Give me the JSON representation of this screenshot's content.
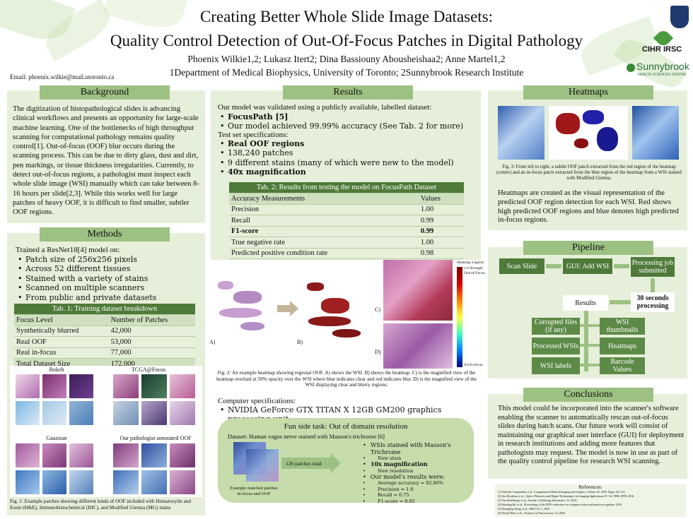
{
  "header": {
    "title_line1": "Creating Better Whole Slide Image Datasets:",
    "title_line2": "Quality Control Detection of Out-Of-Focus Patches in Digital Pathology",
    "authors": "Phoenix Wilkie1,2; Lukasz Itert2; Dina Bassiouny Abousheishaa2; Anne Martel1,2",
    "affiliations": "1Department of Medical Biophysics, University of Toronto; 2Sunnybrook Research Institute",
    "email": "Email: phoenix.wilkie@mail.utoronto.ca",
    "logo_cihr": "CIHR IRSC",
    "logo_sunnybrook": "Sunnybrook",
    "logo_sunnybrook_sub": "HEALTH SCIENCES CENTRE"
  },
  "background": {
    "title": "Background",
    "text": "The digitization of histopathological slides is advancing clinical workflows and presents an opportunity for large-scale machine learning. One of the bottlenecks of high throughput scanning for computational pathology remains quality control[1]. Out-of-focus (OOF) blur occurs during the scanning process. This can be due to dirty glass, dust and dirt, pen markings, or tissue thickness irregularities. Currently, to detect out-of-focus regions, a pathologist must inspect each whole slide image (WSI) manually which can take between 8-16 hours per slide[2,3]. While this works well for large patches of heavy OOF, it is difficult to find smaller, subtler OOF regions."
  },
  "methods": {
    "title": "Methods",
    "intro": "Trained a ResNet18[4] model on:",
    "bullets": [
      "Patch size of 256x256 pixels",
      "Across 52 different tissues",
      "Stained with a variety of stains",
      "Scanned on multiple scanners",
      "From public and private datasets"
    ],
    "table": {
      "caption": "Tab. 1: Training dataset breakdown",
      "headers": [
        "Focus Level",
        "Number of Patches"
      ],
      "rows": [
        [
          "Synthetically blurred",
          "42,000"
        ],
        [
          "Real OOF",
          "53,000"
        ],
        [
          "Real in-focus",
          "77,000"
        ],
        [
          "Total Dataset Size",
          "172,000"
        ]
      ]
    },
    "image_labels": [
      "Bokeh",
      "TCGA@Focus",
      "Gaussian",
      "Our pathologist annotated OOF"
    ],
    "fig_caption": "Fig. 1: Example patches showing different kinds of OOF included with Hematoxylin and Eosin (H&E), Immunohistochemical (IHC), and Modified Giemsa (MG) stains"
  },
  "results": {
    "title": "Results",
    "intro": "Our model was validated using a publicly available, labelled dataset:",
    "bullets1": [
      "FocusPath [5]",
      "Our model achieved 99.99% accuracy (See Tab. 2 for more)"
    ],
    "spec_title": "Test set specifications:",
    "bullets2": [
      "Real OOF regions",
      "138,240 patches",
      "9 different stains (many of which were new to the model)",
      "40x magnification"
    ],
    "table": {
      "caption": "Tab. 2: Results from testing the model on FocusPath Dataset",
      "headers": [
        "Accuracy Measurements",
        "Values"
      ],
      "rows": [
        [
          "Precision",
          "1.00"
        ],
        [
          "Recall",
          "0.99"
        ],
        [
          "F1-score",
          "0.99"
        ],
        [
          "True negative rate",
          "1.00"
        ],
        [
          "Predicted positive condition rate",
          "0.98"
        ]
      ]
    },
    "fig_labels": [
      "A)",
      "B)",
      "C)",
      "D)"
    ],
    "legend_title": "Heatmap Legend",
    "legend_top": "1.0 Strongly Out-of-Focus",
    "legend_bottom": "0.0 In-focus",
    "fig_caption": "Fig. 2: An example heatmap showing regional OOF. A) shows the WSI. B) shows the heatmap. C) is the magnified view of the heatmap overlaid at 50% opacity over the WSI where blue indicates clear and red indicates blur. D) is the magnified view of the WSI displaying clear and blurry regions.",
    "computer_title": "Computer specifications:",
    "computer_bullet": "NVIDIA GeForce GTX TITAN X 12GB GM200 graphics processing unit",
    "side_task": {
      "title": "Fun side task: Out of domain resolution",
      "dataset": "Dataset: Human vagus nerve stained with Masson's trichrome [6]",
      "patches": "126 patches total",
      "img_caption": "Example matched patches In-focus and OOF",
      "bullets": [
        "WSIs stained with Masson's Trichrome",
        "New stain",
        "10x magnification",
        "New resolution",
        "Our model's results were:",
        "Average accuracy = 92.86%",
        "Precision = 1.0",
        "Recall = 0.75",
        "F1-score = 0.85"
      ]
    }
  },
  "heatmaps": {
    "title": "Heatmaps",
    "fig_caption": "Fig. 3: From left to right, a subtle OOF patch extracted from the red region of the heatmap (centre) and an in-focus patch extracted from the blue region of the heatmap from a WSI stained with Modified Giemsa.",
    "text": "Heatmaps are created as the visual representation of the predicted OOF region detection for each WSI. Red shows high predicted OOF regions and blue denotes high predicted in-focus regions."
  },
  "pipeline": {
    "title": "Pipeline",
    "nodes": [
      "Scan Slide",
      "GUI: Add WSI",
      "Processing job submitted",
      "30 seconds processing",
      "Results",
      "Corrupted files (if any)",
      "WSI thumbnails",
      "Processed WSIs",
      "Heatmaps",
      "WSI labels",
      "Barcode Values"
    ]
  },
  "conclusions": {
    "title": "Conclusions",
    "text": "This model could be incorporated into the scanner's software enabling the scanner to automatically rescan out-of-focus slides during batch scans. Our future work will consist of maintaining our graphical user interface (GUI) for deployment in research institutions and adding more features that pathologists may request. The model is now in use as part of the quality control pipeline for research WSI scanning."
  },
  "references": {
    "title": "References:",
    "items": [
      "[1] Gabriele Campanella, et al., Computerized Medical Imaging and Graphics, Volume 65, 2018, Pages 142-151.",
      "[2] Aus Rosalena, et al., Optics, Photonics and Digital Technologies for Imaging Applications IV. Vol. 9896. SPIE, 2016.",
      "[3] Tess Kohlberger et al., Journal of Pathology Informatics, 10, 2019.",
      "[4] Kaiming He, et al., Proceedings of the IEEE conference on computer vision and pattern recognition. 2016.",
      "[5] Zhongling Wang, et al., MICCAI, 1, 2020.",
      "[6] Nicole Pelot, et al., Frontiers in Neuroscience, 14, 2020."
    ]
  }
}
